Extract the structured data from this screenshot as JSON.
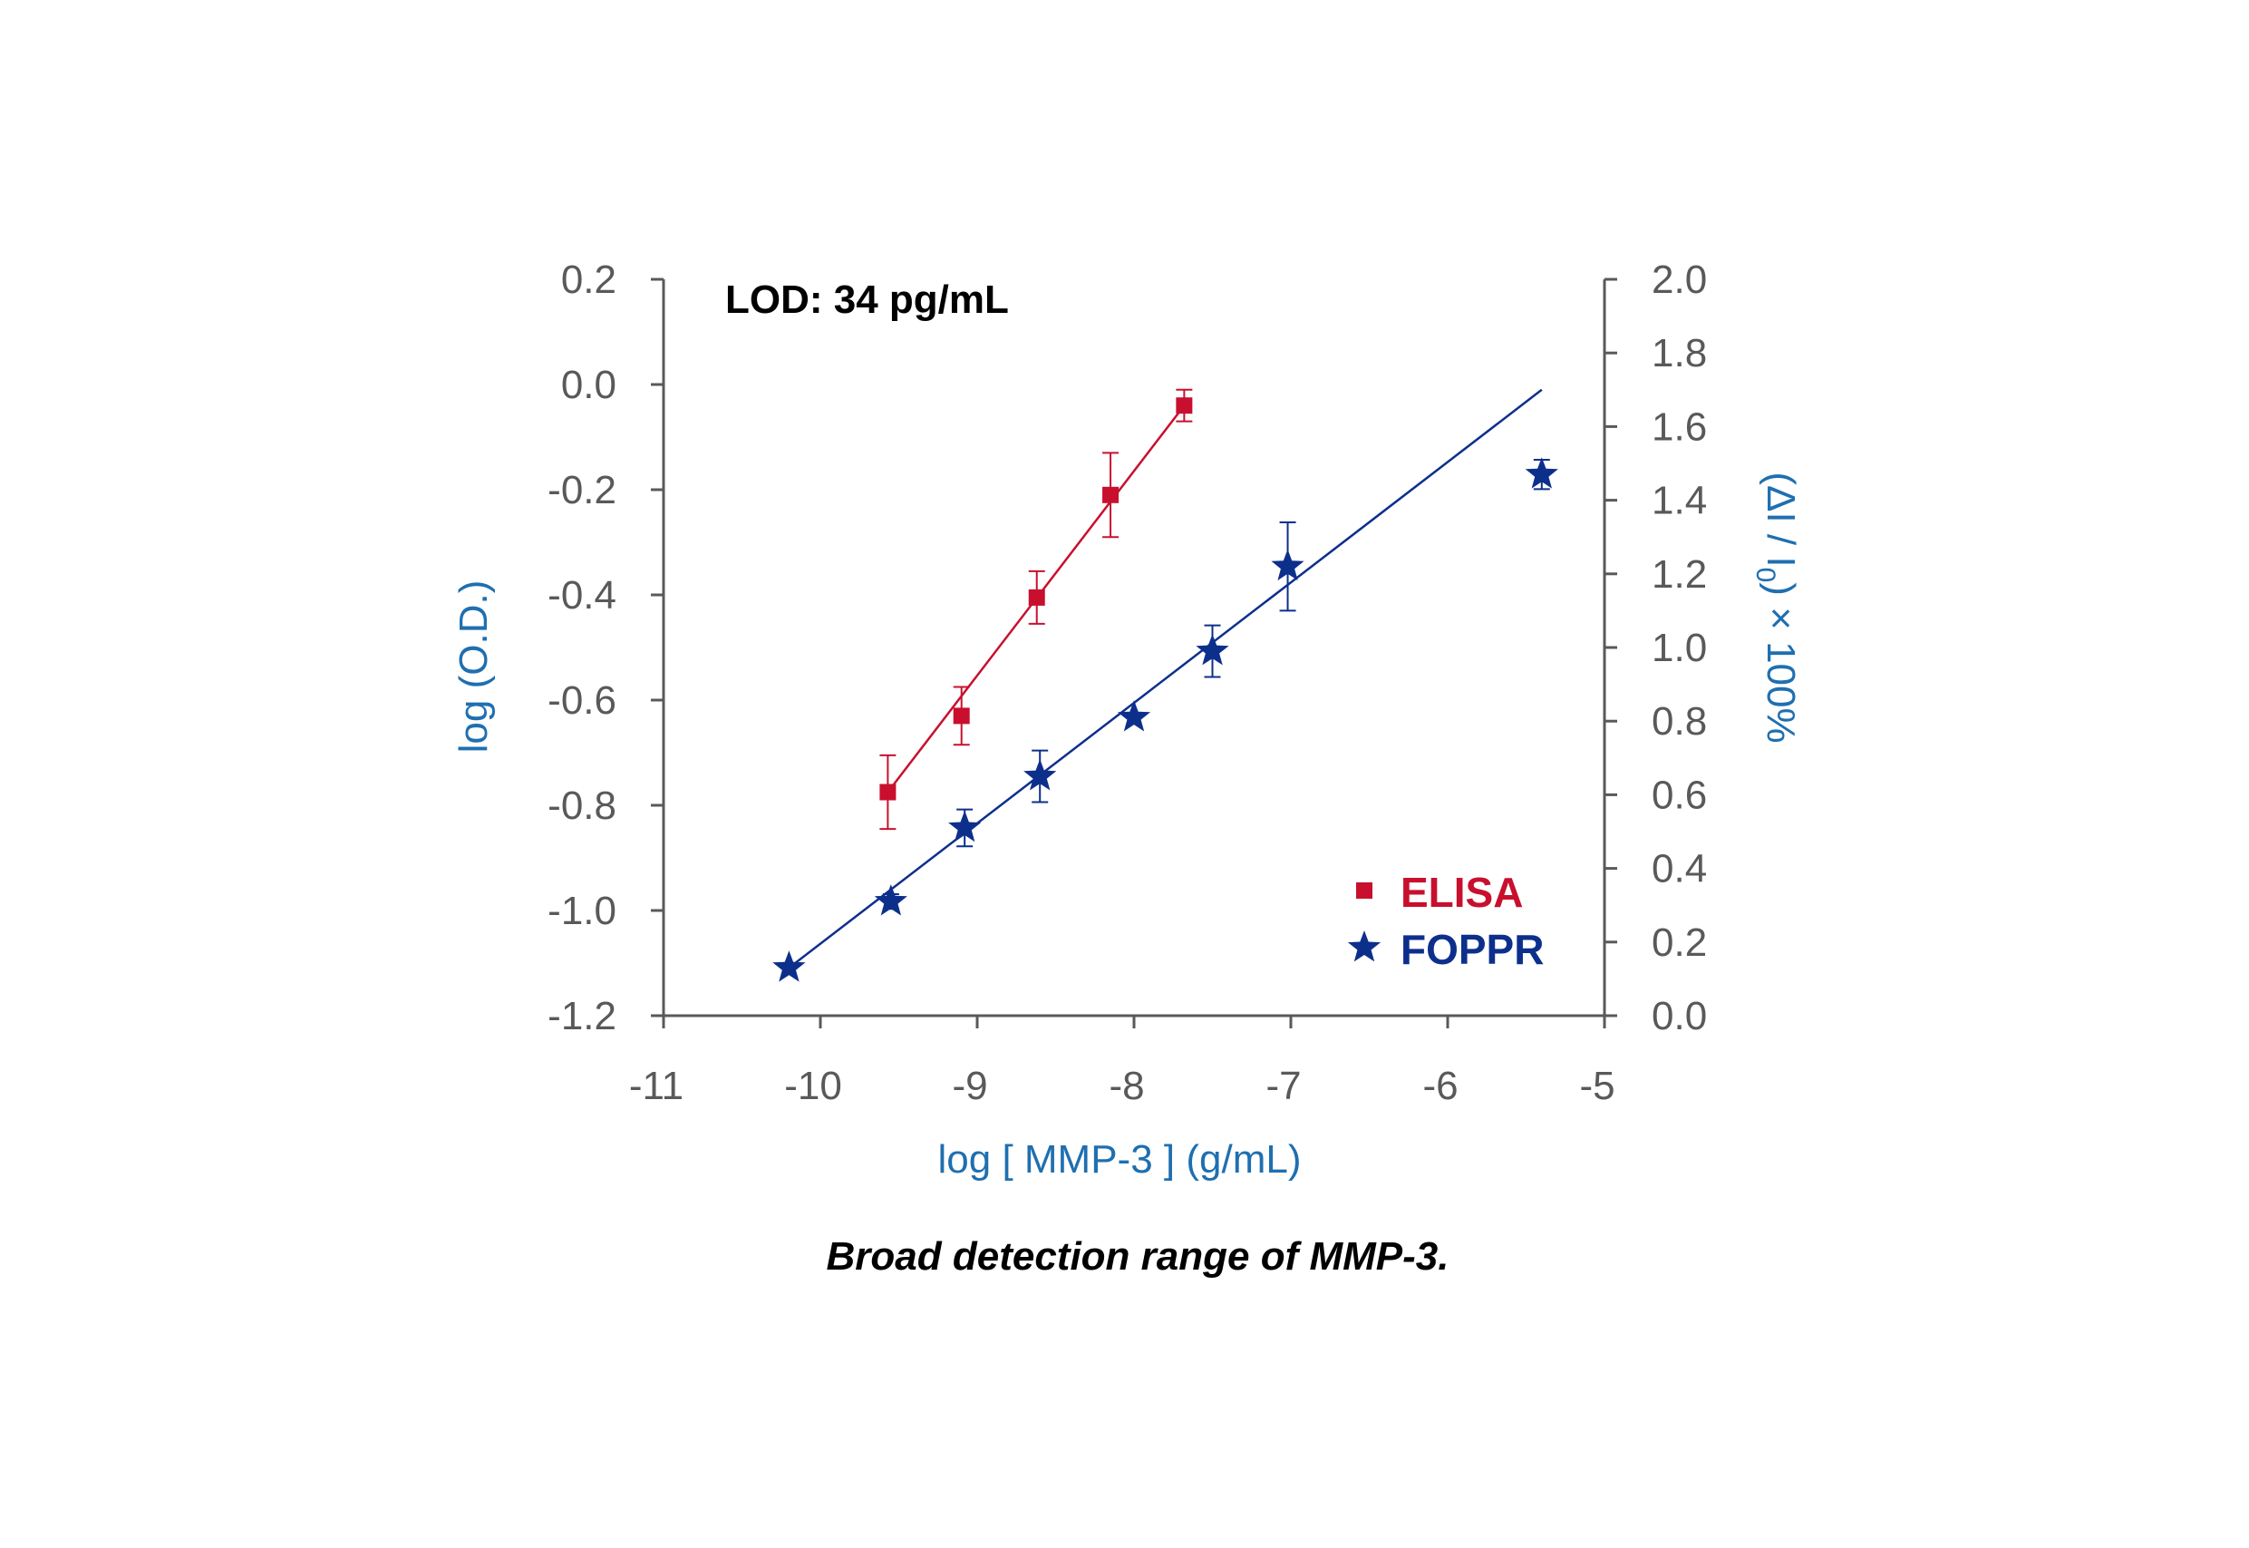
{
  "chart_data": {
    "type": "scatter",
    "annotation": "LOD: 34 pg/mL",
    "caption": "Broad detection range of MMP-3.",
    "xlabel": "log [ MMP-3 ] (g/mL)",
    "ylabel": "log (O.D.)",
    "y2label": "(ΔI / I0) × 100%",
    "y2label_parts": {
      "main": "(ΔI / I",
      "sub": "0",
      "tail": ") × 100%"
    },
    "xlim": [
      -11,
      -5
    ],
    "ylim": [
      -1.2,
      0.2
    ],
    "y2lim": [
      0.0,
      2.0
    ],
    "x_ticks": [
      "-11",
      "-10",
      "-9",
      "-8",
      "-7",
      "-6",
      "-5"
    ],
    "y_ticks": [
      "0.2",
      "0.0",
      "-0.2",
      "-0.4",
      "-0.6",
      "-0.8",
      "-1.0",
      "-1.2"
    ],
    "y2_ticks": [
      "2.0",
      "1.8",
      "1.6",
      "1.4",
      "1.2",
      "1.0",
      "0.8",
      "0.6",
      "0.4",
      "0.2",
      "0.0"
    ],
    "grid": false,
    "legend_position": "bottom-right",
    "colors": {
      "axis_title": "#1f6fb0",
      "tick_text": "#595959",
      "elisa": "#c8102e",
      "foppr": "#0d2f8c",
      "axis": "#595959"
    },
    "series": [
      {
        "name": "ELISA",
        "axis": "left",
        "marker": "square",
        "color": "#c8102e",
        "points": [
          {
            "x": -9.57,
            "y": -0.775,
            "err": 0.07
          },
          {
            "x": -9.1,
            "y": -0.63,
            "err": 0.055
          },
          {
            "x": -8.62,
            "y": -0.405,
            "err": 0.05
          },
          {
            "x": -8.15,
            "y": -0.21,
            "err": 0.08
          },
          {
            "x": -7.68,
            "y": -0.04,
            "err": 0.03
          }
        ],
        "fit": {
          "x": [
            -9.57,
            -7.68
          ],
          "y": [
            -0.775,
            -0.04
          ]
        }
      },
      {
        "name": "FOPPR",
        "axis": "right",
        "marker": "star",
        "color": "#0d2f8c",
        "points": [
          {
            "x": -10.2,
            "y": 0.13,
            "err": 0.0
          },
          {
            "x": -9.55,
            "y": 0.31,
            "err": 0.02
          },
          {
            "x": -9.08,
            "y": 0.51,
            "err": 0.05
          },
          {
            "x": -8.6,
            "y": 0.65,
            "err": 0.07
          },
          {
            "x": -8.0,
            "y": 0.81,
            "err": 0.0
          },
          {
            "x": -7.5,
            "y": 0.99,
            "err": 0.07
          },
          {
            "x": -7.02,
            "y": 1.22,
            "err": 0.12
          },
          {
            "x": -5.4,
            "y": 1.47,
            "err": 0.04
          }
        ],
        "fit": {
          "x": [
            -10.2,
            -5.4
          ],
          "y": [
            0.13,
            1.7
          ]
        }
      }
    ]
  }
}
